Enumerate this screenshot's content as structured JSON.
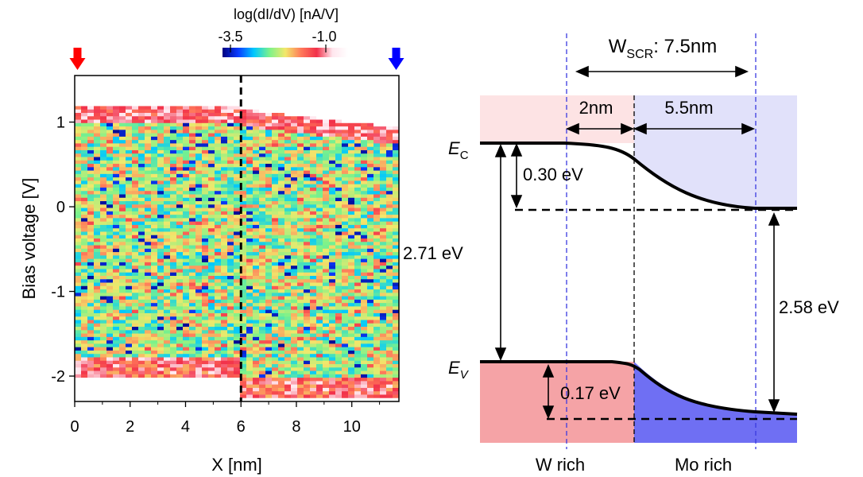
{
  "chart_data": [
    {
      "type": "heatmap",
      "title": "",
      "xlabel": "X [nm]",
      "ylabel": "Bias voltage [V]",
      "xlim": [
        0,
        11.7
      ],
      "ylim": [
        -2.3,
        1.55
      ],
      "x_ticks": [
        0,
        2,
        4,
        6,
        8,
        10
      ],
      "x_tick_labels": [
        "0",
        "2",
        "4",
        "6",
        "8",
        "10"
      ],
      "y_ticks": [
        1,
        0,
        -1,
        -2
      ],
      "y_tick_labels": [
        "1",
        "0",
        "-1",
        "-2"
      ],
      "colorbar": {
        "label": "log(dI/dV) [nA/V]",
        "min": -3.5,
        "max": -1.0,
        "min_label": "-3.5",
        "max_label": "-1.0",
        "colors": [
          "#000080",
          "#0a3cff",
          "#00c8ff",
          "#7cf28a",
          "#f2e86b",
          "#ff7a5a",
          "#f2314a",
          "#ffe6ee",
          "#ffffff"
        ]
      },
      "interface_x": 6.0,
      "conduction_edge_left": 1.0,
      "conduction_edge_right": 0.78,
      "valence_edge_left": -1.85,
      "valence_edge_right": -2.1,
      "markers": [
        {
          "x": 0.1,
          "color": "#ff0000",
          "direction": "down"
        },
        {
          "x": 11.6,
          "color": "#0000ff",
          "direction": "down"
        }
      ]
    },
    {
      "type": "band-diagram",
      "title": "",
      "W_SCR": {
        "prefix": "W",
        "sub": "SCR",
        "suffix": ": 7.5nm"
      },
      "width_left": "2nm",
      "width_right": "5.5nm",
      "Ec_label": {
        "main": "E",
        "sub": "C"
      },
      "Ev_label": {
        "main": "E",
        "sub": "V"
      },
      "delta_Ec": "0.30 eV",
      "delta_Ev": "0.17 eV",
      "gap_left": "2.71 eV",
      "gap_right": "2.58 eV",
      "region_left": "W rich",
      "region_right": "Mo rich",
      "colors": {
        "left_cb": "#fde3e4",
        "right_cb": "#e1e1fa",
        "left_vb": "#f5a3a6",
        "right_vb": "#6f6ff3",
        "scr_line": "#3a3ae0"
      }
    }
  ]
}
